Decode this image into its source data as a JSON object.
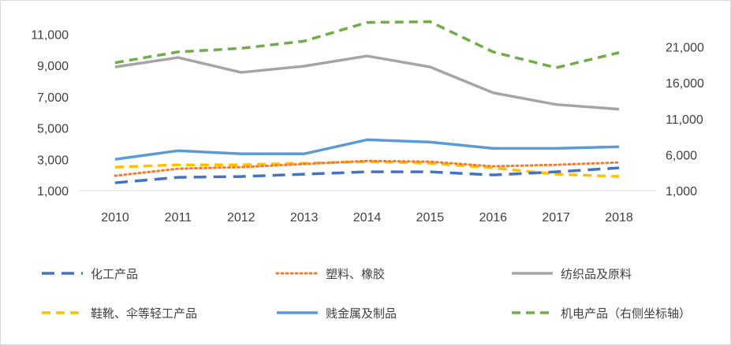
{
  "chart_data": {
    "type": "line",
    "title": "",
    "xlabel": "",
    "ylabel": "",
    "categories": [
      "2010",
      "2011",
      "2012",
      "2013",
      "2014",
      "2015",
      "2016",
      "2017",
      "2018"
    ],
    "y_left": {
      "ticks": [
        1000,
        3000,
        5000,
        7000,
        9000,
        11000
      ],
      "tick_labels": [
        "1,000",
        "3,000",
        "5,000",
        "7,000",
        "9,000",
        "11,000"
      ],
      "range": [
        1000,
        11000
      ]
    },
    "y_right": {
      "ticks": [
        1000,
        6000,
        11000,
        16000,
        21000
      ],
      "tick_labels": [
        "1,000",
        "6,000",
        "11,000",
        "16,000",
        "21,000"
      ],
      "range": [
        1000,
        21000
      ]
    },
    "grid": false,
    "legend_position": "bottom",
    "series": [
      {
        "name": "化工产品",
        "axis": "left",
        "color": "#4472c4",
        "dash": "long-dash",
        "values": [
          1500,
          1850,
          1900,
          2050,
          2200,
          2200,
          2000,
          2200,
          2450
        ]
      },
      {
        "name": "塑料、橡胶",
        "axis": "left",
        "color": "#ed7d31",
        "dash": "dot",
        "values": [
          1950,
          2400,
          2500,
          2700,
          2900,
          2850,
          2550,
          2650,
          2800
        ]
      },
      {
        "name": "纺织品及原料",
        "axis": "left",
        "color": "#a5a5a5",
        "dash": "solid",
        "values": [
          8900,
          9500,
          8550,
          8950,
          9600,
          8900,
          7250,
          6500,
          6200
        ]
      },
      {
        "name": "鞋靴、伞等轻工产品",
        "axis": "left",
        "color": "#ffc000",
        "dash": "dash",
        "values": [
          2500,
          2650,
          2650,
          2750,
          2850,
          2750,
          2450,
          2050,
          1900
        ]
      },
      {
        "name": "贱金属及制品",
        "axis": "left",
        "color": "#5b9bd5",
        "dash": "solid",
        "values": [
          3000,
          3550,
          3350,
          3350,
          4250,
          4100,
          3700,
          3700,
          3800
        ]
      },
      {
        "name": "机电产品（右侧坐标轴）",
        "axis": "right",
        "color": "#70ad47",
        "dash": "dash",
        "values": [
          18800,
          20300,
          20800,
          21800,
          24400,
          24500,
          20300,
          18100,
          20200
        ]
      }
    ]
  }
}
